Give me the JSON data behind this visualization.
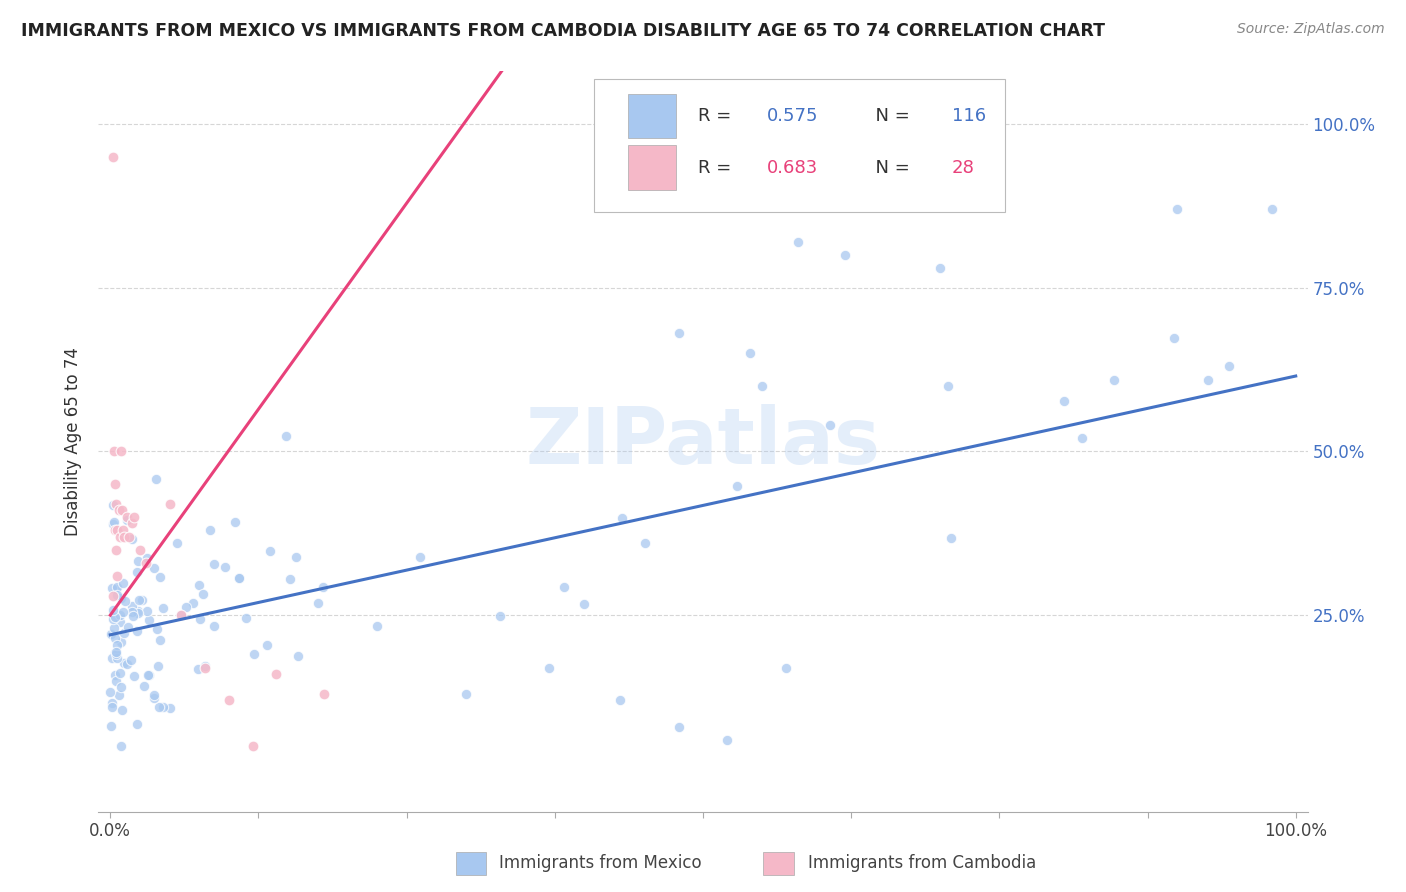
{
  "title": "IMMIGRANTS FROM MEXICO VS IMMIGRANTS FROM CAMBODIA DISABILITY AGE 65 TO 74 CORRELATION CHART",
  "source": "Source: ZipAtlas.com",
  "ylabel": "Disability Age 65 to 74",
  "background_color": "#ffffff",
  "watermark": "ZIPatlas",
  "mexico_color": "#a8c8f0",
  "cambodia_color": "#f5b8c8",
  "mexico_line_color": "#4472c4",
  "cambodia_line_color": "#e8417a",
  "legend_text_color": "#4472c4",
  "mexico_R": 0.575,
  "mexico_N": 116,
  "cambodia_R": 0.683,
  "cambodia_N": 28,
  "xlim": [
    -0.01,
    1.01
  ],
  "ylim": [
    -0.05,
    1.08
  ],
  "mexico_line_x0": 0.0,
  "mexico_line_y0": 0.22,
  "mexico_line_x1": 1.0,
  "mexico_line_y1": 0.615,
  "cambodia_line_x0": 0.0,
  "cambodia_line_y0": 0.25,
  "cambodia_line_x1": 0.33,
  "cambodia_line_y1": 1.08
}
